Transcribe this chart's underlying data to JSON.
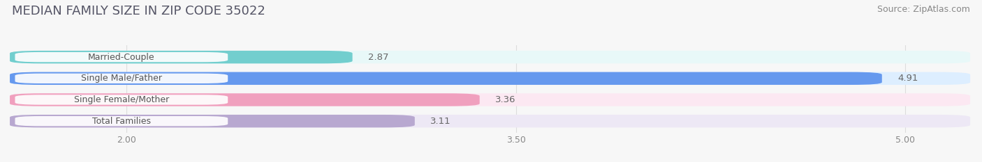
{
  "title": "MEDIAN FAMILY SIZE IN ZIP CODE 35022",
  "source": "Source: ZipAtlas.com",
  "categories": [
    "Married-Couple",
    "Single Male/Father",
    "Single Female/Mother",
    "Total Families"
  ],
  "values": [
    2.87,
    4.91,
    3.36,
    3.11
  ],
  "bar_colors": [
    "#72cece",
    "#6699ee",
    "#f0a0be",
    "#b8a8d0"
  ],
  "bar_bg_colors": [
    "#e8f8f8",
    "#ddeeff",
    "#fce8f2",
    "#ede8f5"
  ],
  "label_bg_color": "#ffffff",
  "label_text_color": "#555555",
  "xlim_min": 1.55,
  "xlim_max": 5.25,
  "xticks": [
    2.0,
    3.5,
    5.0
  ],
  "xtick_labels": [
    "2.00",
    "3.50",
    "5.00"
  ],
  "value_fontsize": 9.5,
  "label_fontsize": 9,
  "title_fontsize": 13,
  "source_fontsize": 9,
  "background_color": "#f7f7f7",
  "bar_height": 0.6,
  "grid_color": "#dddddd",
  "title_color": "#555566",
  "source_color": "#888888"
}
